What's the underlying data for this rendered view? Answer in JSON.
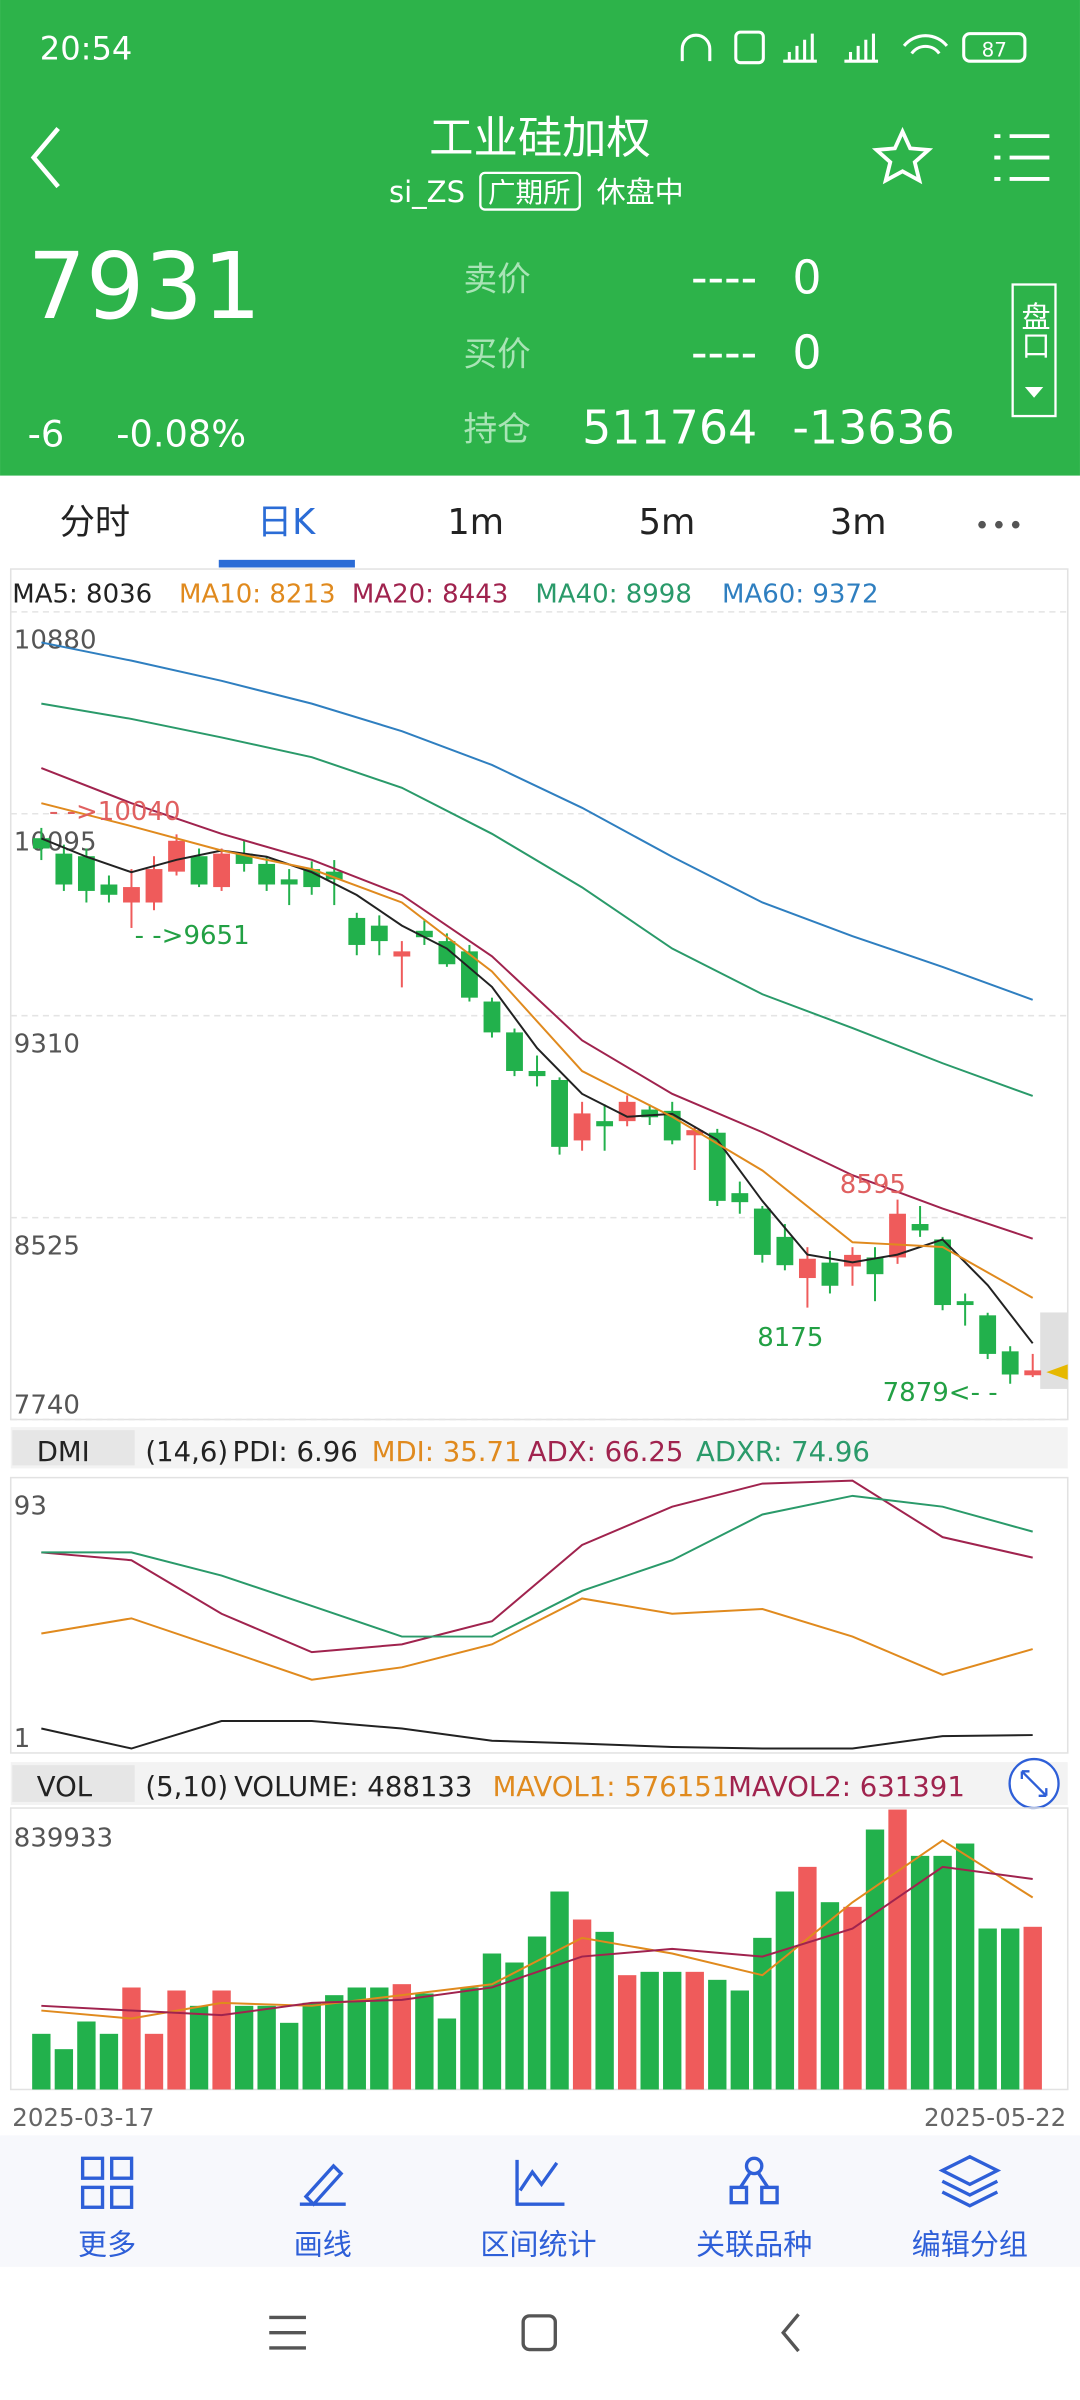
{
  "status_bar": {
    "time": "20:54",
    "battery": "87"
  },
  "header": {
    "title": "工业硅加权",
    "code": "si_ZS",
    "exchange": "广期所",
    "status": "休盘中"
  },
  "quote": {
    "price": "7931",
    "change": "-6",
    "change_pct": "-0.08%",
    "rows": [
      {
        "label": "卖价",
        "value": "----",
        "qty": "0"
      },
      {
        "label": "买价",
        "value": "----",
        "qty": "0"
      },
      {
        "label": "持仓",
        "value": "511764",
        "qty": "-13636"
      }
    ],
    "side_button": "盘口"
  },
  "tabs": [
    "分时",
    "日K",
    "1m",
    "5m",
    "3m"
  ],
  "chart_data": [
    {
      "type": "candlestick",
      "up_color": "#ef5b5b",
      "down_color": "#22b14c",
      "categories": [
        "2025-03-17",
        null,
        null,
        null,
        null,
        null,
        null,
        null,
        null,
        null,
        null,
        null,
        null,
        null,
        null,
        null,
        null,
        null,
        null,
        null,
        null,
        null,
        null,
        null,
        null,
        null,
        null,
        null,
        null,
        null,
        null,
        null,
        null,
        null,
        null,
        null,
        null,
        null,
        null,
        null,
        null,
        null,
        null,
        null,
        "2025-05-22"
      ],
      "ylim": [
        7740,
        10880
      ],
      "yticks": [
        7740,
        8525,
        9310,
        10095,
        10880
      ],
      "grid": true,
      "candles": {
        "open": [
          10000,
          9940,
          9930,
          9820,
          9750,
          9750,
          9870,
          9930,
          9810,
          9940,
          9900,
          9840,
          9880,
          9870,
          9690,
          9660,
          9540,
          9640,
          9600,
          9560,
          9365,
          9245,
          9095,
          9060,
          8825,
          8900,
          8900,
          8945,
          8940,
          8845,
          8855,
          8620,
          8560,
          8450,
          8290,
          8350,
          8335,
          8370,
          8370,
          8500,
          8440,
          8200,
          8145,
          8005,
          7912
        ],
        "high": [
          10040,
          9975,
          9960,
          9855,
          9880,
          9930,
          10015,
          9960,
          9960,
          9990,
          9930,
          9880,
          9910,
          9915,
          9710,
          9700,
          9600,
          9680,
          9630,
          9585,
          9380,
          9260,
          9155,
          9070,
          8975,
          8965,
          9000,
          8965,
          8975,
          8880,
          8870,
          8665,
          8570,
          8500,
          8410,
          8395,
          8410,
          8410,
          8595,
          8570,
          8450,
          8230,
          8155,
          8025,
          7995
        ],
        "low": [
          9915,
          9795,
          9750,
          9750,
          9651,
          9720,
          9855,
          9810,
          9795,
          9870,
          9795,
          9740,
          9780,
          9740,
          9545,
          9545,
          9420,
          9585,
          9500,
          9365,
          9225,
          9075,
          9035,
          8770,
          8785,
          8785,
          8880,
          8885,
          8810,
          8710,
          8570,
          8540,
          8350,
          8320,
          8175,
          8230,
          8260,
          8200,
          8345,
          8450,
          8165,
          8105,
          7975,
          7879,
          7905
        ],
        "close": [
          9960,
          9820,
          9795,
          9780,
          9810,
          9880,
          9990,
          9820,
          9940,
          9900,
          9820,
          9820,
          9810,
          9840,
          9585,
          9600,
          9560,
          9615,
          9510,
          9380,
          9245,
          9095,
          9075,
          8800,
          8930,
          8880,
          8975,
          8915,
          8825,
          8865,
          8590,
          8585,
          8380,
          8340,
          8365,
          8260,
          8380,
          8305,
          8540,
          8475,
          8185,
          8185,
          7995,
          7915,
          7931
        ]
      },
      "series": [
        {
          "label": "MA5: 8036",
          "color": "#222222",
          "x": [
            0,
            2,
            4,
            6,
            8,
            10,
            12,
            14,
            16,
            18,
            20,
            22,
            24,
            26,
            28,
            30,
            32,
            34,
            36,
            38,
            40,
            42,
            44
          ],
          "values": [
            9999,
            9928,
            9868,
            9916,
            9952,
            9928,
            9868,
            9779,
            9660,
            9571,
            9422,
            9184,
            9006,
            8917,
            8928,
            8827,
            8589,
            8381,
            8351,
            8381,
            8440,
            8262,
            8036
          ]
        },
        {
          "label": "MA10: 8213",
          "color": "#e08a1e",
          "x": [
            0,
            4,
            8,
            12,
            16,
            20,
            24,
            28,
            32,
            36,
            40,
            44
          ],
          "values": [
            10136,
            10047,
            9952,
            9880,
            9750,
            9482,
            9095,
            8917,
            8708,
            8429,
            8411,
            8213
          ]
        },
        {
          "label": "MA20: 8443",
          "color": "#a0234e",
          "x": [
            0,
            4,
            8,
            12,
            16,
            20,
            24,
            28,
            32,
            36,
            40,
            44
          ],
          "values": [
            10273,
            10136,
            10017,
            9916,
            9779,
            9541,
            9214,
            9006,
            8857,
            8690,
            8560,
            8443
          ]
        },
        {
          "label": "MA40: 8998",
          "color": "#2a9a6a",
          "x": [
            0,
            4,
            8,
            12,
            16,
            20,
            24,
            28,
            32,
            36,
            40,
            44
          ],
          "values": [
            10523,
            10464,
            10392,
            10315,
            10196,
            10017,
            9809,
            9571,
            9393,
            9262,
            9125,
            8998
          ]
        },
        {
          "label": "MA60: 9372",
          "color": "#2f7fc0",
          "x": [
            0,
            4,
            8,
            12,
            16,
            20,
            24,
            28,
            32,
            36,
            40,
            44
          ],
          "values": [
            10761,
            10690,
            10612,
            10523,
            10416,
            10285,
            10118,
            9928,
            9750,
            9619,
            9500,
            9372
          ]
        }
      ],
      "annotations": [
        "- ->10040",
        "- ->9651",
        "8595",
        "8175",
        "7879<- -"
      ]
    },
    {
      "type": "line",
      "title": "DMI",
      "params": "(14,6)",
      "ylim": [
        1,
        93
      ],
      "yticks": [
        1,
        93
      ],
      "series": [
        {
          "label": "PDI: 6.96",
          "color": "#222222",
          "x": [
            0,
            4,
            8,
            12,
            16,
            20,
            24,
            28,
            32,
            36,
            40,
            44
          ],
          "values": [
            9.2,
            2.5,
            11.7,
            11.7,
            9.2,
            5.1,
            4.1,
            3.0,
            2.5,
            2.5,
            6.6,
            6.96
          ]
        },
        {
          "label": "MDI: 35.71",
          "color": "#e08a1e",
          "x": [
            0,
            4,
            8,
            12,
            16,
            20,
            24,
            28,
            32,
            36,
            40,
            44
          ],
          "values": [
            40.9,
            46.0,
            35.8,
            25.5,
            29.6,
            37.3,
            52.6,
            47.5,
            49.1,
            39.9,
            27.1,
            35.71
          ]
        },
        {
          "label": "ADX: 66.25",
          "color": "#a0234e",
          "x": [
            0,
            4,
            8,
            12,
            16,
            20,
            24,
            28,
            32,
            36,
            40,
            44
          ],
          "values": [
            68.0,
            65.4,
            47.5,
            34.7,
            37.3,
            45.0,
            70.5,
            83.3,
            91.0,
            92.0,
            73.1,
            66.25
          ]
        },
        {
          "label": "ADXR: 74.96",
          "color": "#2a9a6a",
          "x": [
            0,
            4,
            8,
            12,
            16,
            20,
            24,
            28,
            32,
            36,
            40,
            44
          ],
          "values": [
            68.0,
            68.0,
            60.3,
            50.1,
            39.9,
            39.9,
            55.2,
            65.4,
            80.7,
            86.9,
            83.3,
            74.96
          ]
        }
      ]
    },
    {
      "type": "bar",
      "title": "VOL",
      "params": "(5,10)",
      "label": "VOLUME: 488133",
      "ylim": [
        0,
        839933
      ],
      "yticks": [
        839933
      ],
      "values": [
        167000,
        121000,
        204000,
        167000,
        306000,
        167000,
        297000,
        251000,
        297000,
        251000,
        251000,
        200000,
        260000,
        283000,
        306000,
        306000,
        316000,
        288000,
        213000,
        306000,
        408000,
        381000,
        459000,
        594000,
        510000,
        473000,
        343000,
        353000,
        353000,
        353000,
        329000,
        297000,
        455000,
        594000,
        668000,
        562000,
        548000,
        780000,
        839933,
        701000,
        701000,
        738000,
        483000,
        483000,
        488133
      ],
      "series": [
        {
          "label": "MAVOL1: 576151",
          "color": "#e08a1e",
          "x": [
            0,
            4,
            8,
            12,
            16,
            20,
            24,
            28,
            32,
            36,
            40,
            44
          ],
          "values": [
            237000,
            213000,
            260000,
            251000,
            283000,
            316000,
            455000,
            408000,
            343000,
            562000,
            747000,
            576151
          ]
        },
        {
          "label": "MAVOL2: 631391",
          "color": "#a0234e",
          "x": [
            0,
            4,
            8,
            12,
            16,
            20,
            24,
            28,
            32,
            36,
            40,
            44
          ],
          "values": [
            251000,
            237000,
            223000,
            260000,
            269000,
            306000,
            399000,
            422000,
            399000,
            483000,
            668000,
            631391
          ]
        }
      ]
    }
  ],
  "toolbar": [
    "更多",
    "画线",
    "区间统计",
    "关联品种",
    "编辑分组"
  ]
}
